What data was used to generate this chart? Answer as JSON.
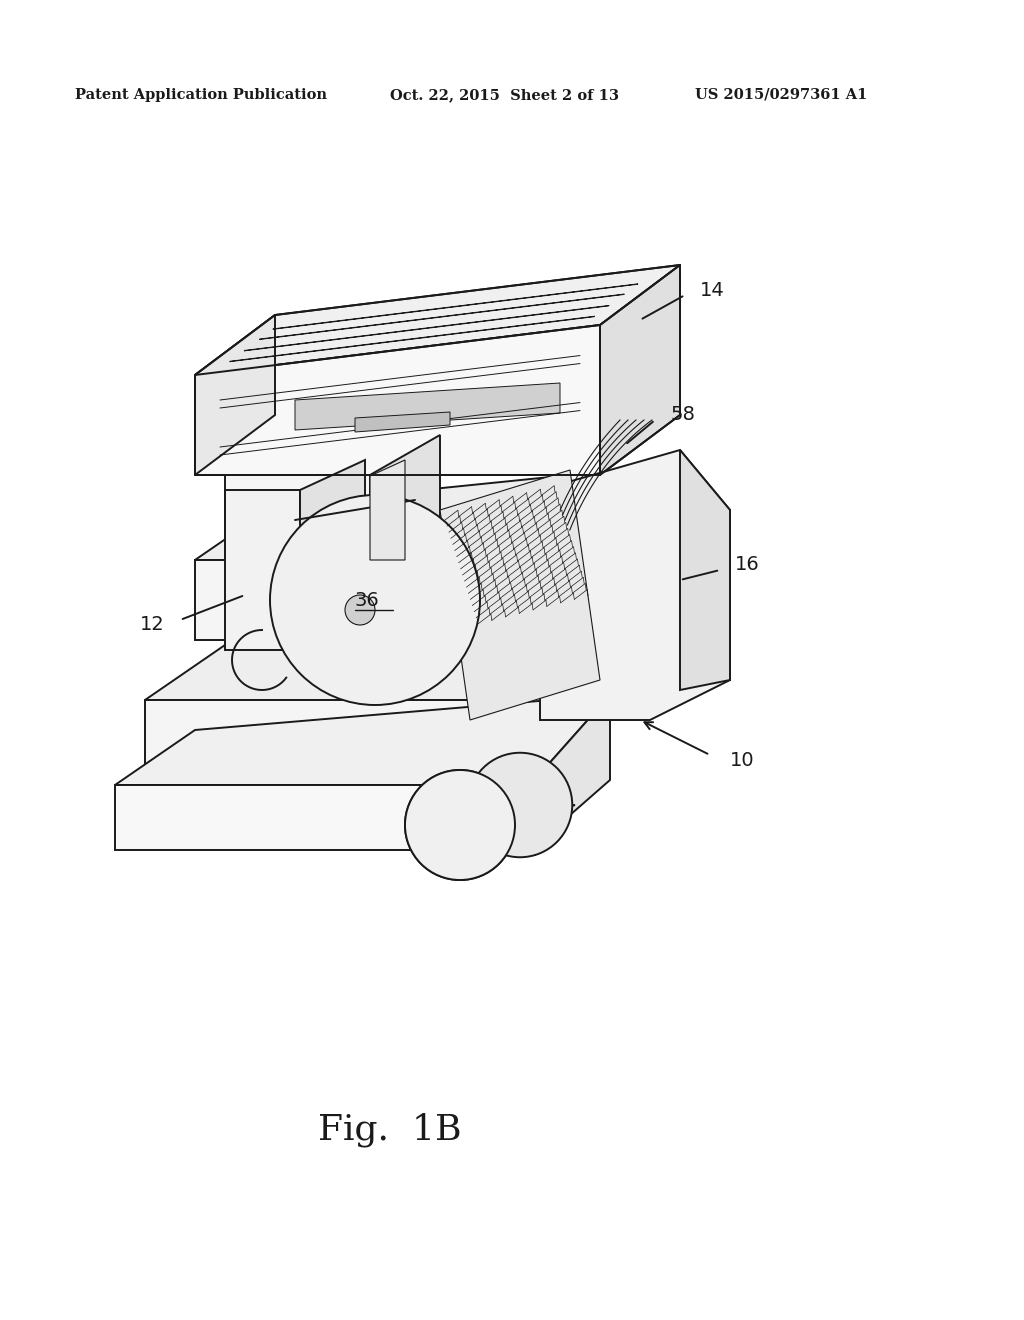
{
  "background_color": "#ffffff",
  "line_color": "#1a1a1a",
  "header_left": "Patent Application Publication",
  "header_center": "Oct. 22, 2015  Sheet 2 of 13",
  "header_right": "US 2015/0297361 A1",
  "figure_label": "Fig.  1B",
  "header_fontsize": 10.5,
  "figlabel_fontsize": 26,
  "label_fontsize": 14
}
